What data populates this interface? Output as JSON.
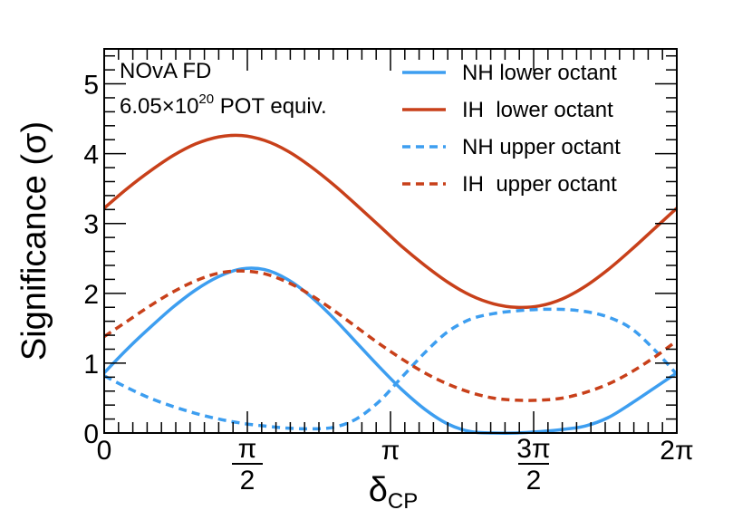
{
  "chart_data": {
    "type": "line",
    "xlabel": "δ",
    "xlabel_sub": "CP",
    "ylabel": "Significance (σ)",
    "xlim": [
      0,
      6.2832
    ],
    "ylim": [
      0,
      5.5
    ],
    "y_ticks": [
      0,
      1,
      2,
      3,
      4,
      5
    ],
    "y_tick_labels": [
      "0",
      "1",
      "2",
      "3",
      "4",
      "5"
    ],
    "x_ticks": [
      {
        "value": 0,
        "label": "0"
      },
      {
        "value": 1.5708,
        "num": "π",
        "den": "2"
      },
      {
        "value": 3.1416,
        "label": "π"
      },
      {
        "value": 4.7124,
        "num": "3π",
        "den": "2"
      },
      {
        "value": 6.2832,
        "label": "2π"
      }
    ],
    "annotation": {
      "line1": "NOvA FD",
      "line2_prefix": "6.05×10",
      "line2_exp": "20",
      "line2_suffix": " POT equiv."
    },
    "legend_position": "top-right",
    "series": [
      {
        "name": "NH lower octant",
        "color": "#3d9ef0",
        "dash": "solid",
        "x": [
          0,
          0.2513,
          0.5027,
          0.754,
          1.0053,
          1.2566,
          1.508,
          1.7593,
          2.0106,
          2.2619,
          2.5133,
          2.7646,
          3.0159,
          3.2673,
          3.5186,
          3.7699,
          4.0212,
          4.2726,
          4.5239,
          4.7752,
          5.0265,
          5.2779,
          5.5292,
          5.7805,
          6.0319,
          6.2832
        ],
        "y": [
          0.86,
          1.2,
          1.51,
          1.8,
          2.05,
          2.24,
          2.35,
          2.34,
          2.2,
          1.96,
          1.65,
          1.3,
          0.95,
          0.62,
          0.34,
          0.13,
          0.02,
          0.0,
          0.0,
          0.02,
          0.05,
          0.1,
          0.22,
          0.42,
          0.64,
          0.86
        ]
      },
      {
        "name": "IH  lower octant",
        "color": "#c8401a",
        "dash": "solid",
        "x": [
          0,
          0.2513,
          0.5027,
          0.754,
          1.0053,
          1.2566,
          1.508,
          1.7593,
          2.0106,
          2.2619,
          2.5133,
          2.7646,
          3.0159,
          3.2673,
          3.5186,
          3.7699,
          4.0212,
          4.2726,
          4.5239,
          4.7752,
          5.0265,
          5.2779,
          5.5292,
          5.7805,
          6.0319,
          6.2832
        ],
        "y": [
          3.22,
          3.5,
          3.75,
          3.97,
          4.14,
          4.24,
          4.26,
          4.19,
          4.04,
          3.82,
          3.56,
          3.27,
          2.97,
          2.67,
          2.4,
          2.16,
          1.97,
          1.85,
          1.8,
          1.82,
          1.92,
          2.1,
          2.34,
          2.62,
          2.92,
          3.22
        ]
      },
      {
        "name": "NH upper octant",
        "color": "#3d9ef0",
        "dash": "dashed",
        "x": [
          0,
          0.2513,
          0.5027,
          0.754,
          1.0053,
          1.2566,
          1.508,
          1.7593,
          2.0106,
          2.2619,
          2.5133,
          2.7646,
          3.0159,
          3.2673,
          3.5186,
          3.7699,
          4.0212,
          4.2726,
          4.5239,
          4.7752,
          5.0265,
          5.2779,
          5.5292,
          5.7805,
          6.0319,
          6.2832
        ],
        "y": [
          0.82,
          0.65,
          0.5,
          0.38,
          0.28,
          0.2,
          0.14,
          0.1,
          0.07,
          0.06,
          0.08,
          0.2,
          0.45,
          0.8,
          1.15,
          1.45,
          1.63,
          1.71,
          1.75,
          1.77,
          1.77,
          1.74,
          1.66,
          1.5,
          1.2,
          0.84
        ]
      },
      {
        "name": "IH  upper octant",
        "color": "#c8401a",
        "dash": "dashed",
        "x": [
          0,
          0.2513,
          0.5027,
          0.754,
          1.0053,
          1.2566,
          1.508,
          1.7593,
          2.0106,
          2.2619,
          2.5133,
          2.7646,
          3.0159,
          3.2673,
          3.5186,
          3.7699,
          4.0212,
          4.2726,
          4.5239,
          4.7752,
          5.0265,
          5.2779,
          5.5292,
          5.7805,
          6.0319,
          6.2832
        ],
        "y": [
          1.38,
          1.6,
          1.82,
          2.02,
          2.18,
          2.29,
          2.32,
          2.28,
          2.16,
          1.98,
          1.76,
          1.52,
          1.28,
          1.06,
          0.86,
          0.7,
          0.58,
          0.5,
          0.47,
          0.47,
          0.5,
          0.58,
          0.7,
          0.87,
          1.08,
          1.32
        ]
      }
    ]
  }
}
